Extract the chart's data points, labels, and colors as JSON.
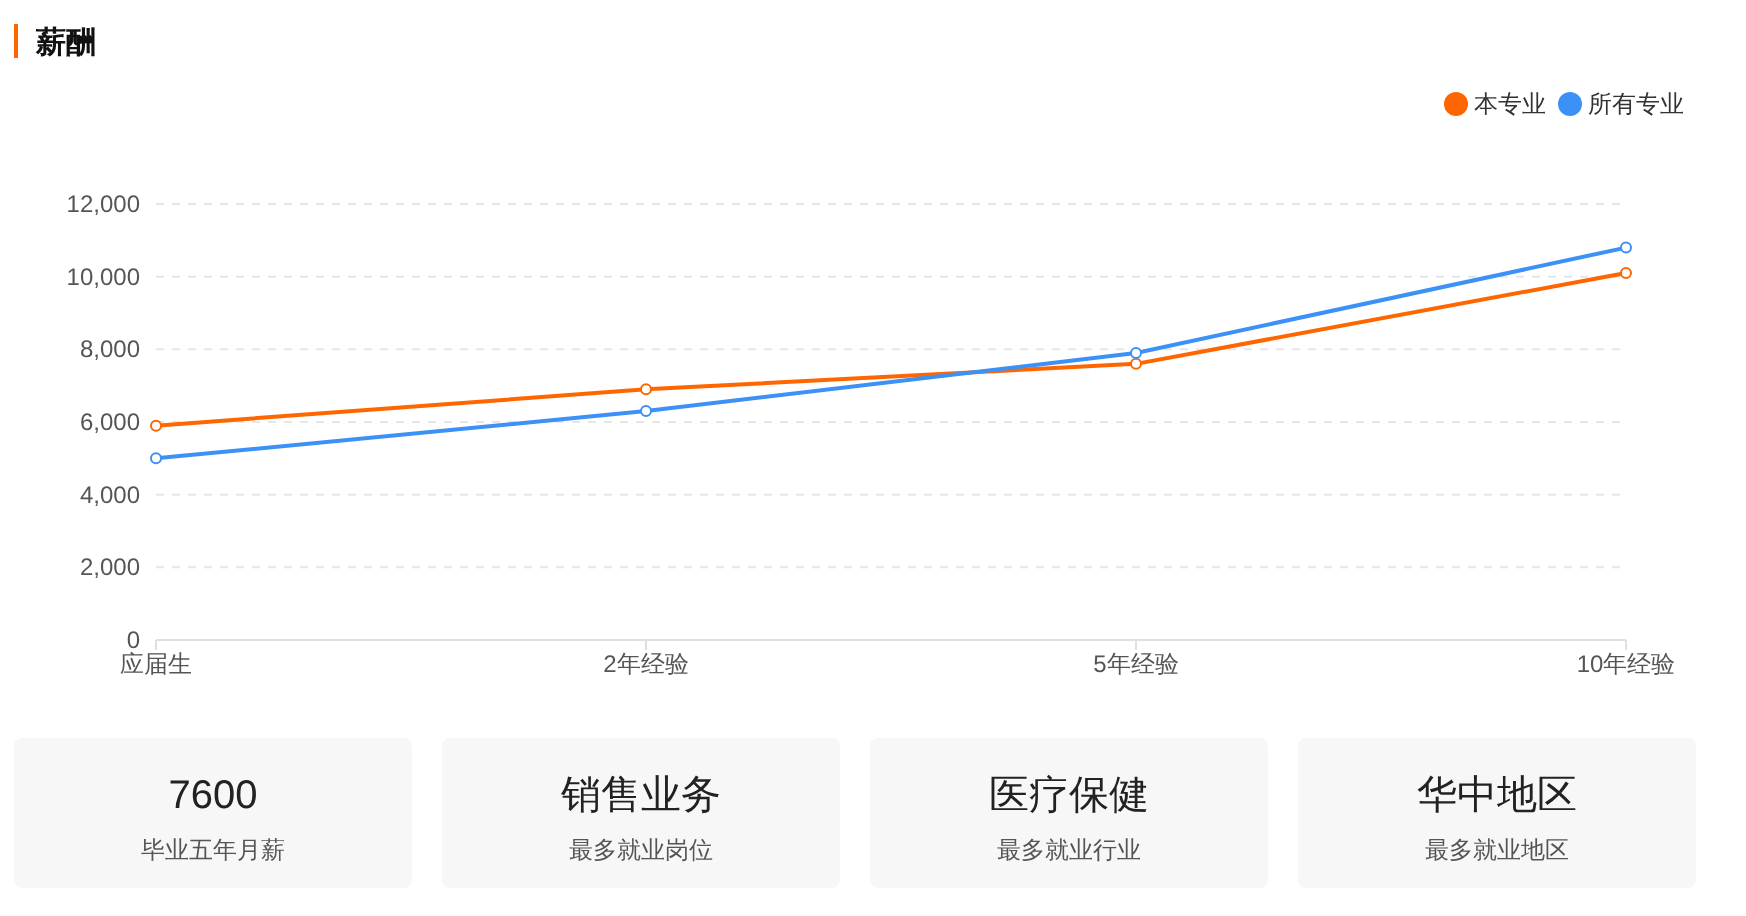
{
  "chart_data": [
    {
      "type": "line",
      "title": "薪酬",
      "categories": [
        "应届生",
        "2年经验",
        "5年经验",
        "10年经验"
      ],
      "series": [
        {
          "name": "本专业",
          "color": "#ff6600",
          "values": [
            5900,
            6900,
            7600,
            10100
          ]
        },
        {
          "name": "所有专业",
          "color": "#3c91f7",
          "values": [
            5000,
            6300,
            7900,
            10800
          ]
        }
      ],
      "ylim": [
        0,
        12000
      ],
      "yticks": [
        {
          "value": 0,
          "label": "0"
        },
        {
          "value": 2000,
          "label": "2,000"
        },
        {
          "value": 4000,
          "label": "4,000"
        },
        {
          "value": 6000,
          "label": "6,000"
        },
        {
          "value": 8000,
          "label": "8,000"
        },
        {
          "value": 10000,
          "label": "10,000"
        },
        {
          "value": 12000,
          "label": "12,000"
        }
      ],
      "grid": "y",
      "legend": "top right",
      "marker": "circle",
      "line_style": "solid"
    },
    {
      "type": "other",
      "annotations": [
        "7600",
        "毕业五年月薪",
        "销售业务",
        "最多就业岗位",
        "医疗保健",
        "最多就业行业",
        "华中地区",
        "最多就业地区"
      ]
    }
  ]
}
